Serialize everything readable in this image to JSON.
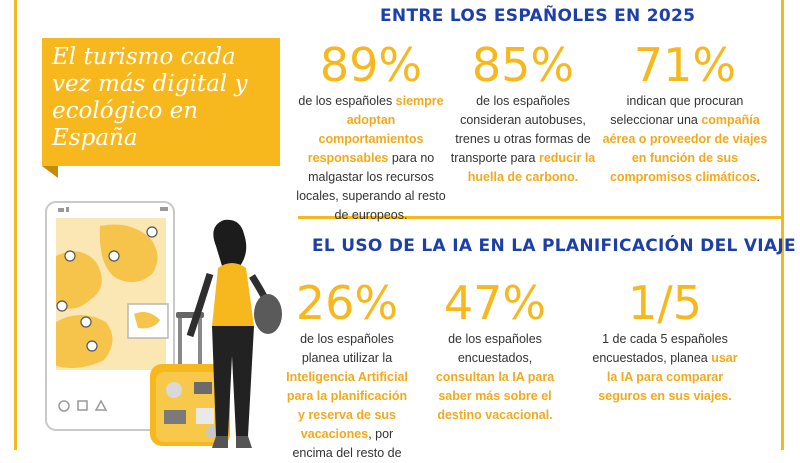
{
  "section1": {
    "title": "ENTRE LOS ESPAÑOLES EN 2025",
    "stats": [
      {
        "value": "89%",
        "p1": "de los españoles ",
        "hl": "siempre adoptan comportamientos responsables",
        "p2": " para no malgastar los recursos locales, superando al resto de europeos."
      },
      {
        "value": "85%",
        "p1": "de los españoles consideran autobuses, trenes u otras formas de transporte para ",
        "hl": "reducir la huella de carbono.",
        "p2": ""
      },
      {
        "value": "71%",
        "p1": "indican que procuran seleccionar una ",
        "hl": "compañía aérea o proveedor de viajes en función de sus compromisos climáticos",
        "p2": "."
      }
    ]
  },
  "banner": {
    "title": "El turismo cada vez más digital y ecológico en España"
  },
  "section2": {
    "title": "EL USO DE LA IA EN LA PLANIFICACIÓN DEL VIAJE",
    "stats": [
      {
        "value": "26%",
        "p1": "de los españoles planea utilizar la ",
        "hl": "Inteligencia Artificial para la planificación y reserva de sus vacaciones",
        "p2": ", por encima del resto de"
      },
      {
        "value": "47%",
        "p1": "de los españoles encuestados, ",
        "hl": "consultan la IA para saber más sobre el destino vacacional.",
        "p2": ""
      },
      {
        "value": "1/5",
        "p1": "1 de cada 5 españoles encuestados, planea ",
        "hl": "usar la IA para comparar seguros en sus viajes.",
        "p2": ""
      }
    ]
  },
  "colors": {
    "accent": "#f6b81c",
    "title_blue": "#1d3fa8"
  }
}
